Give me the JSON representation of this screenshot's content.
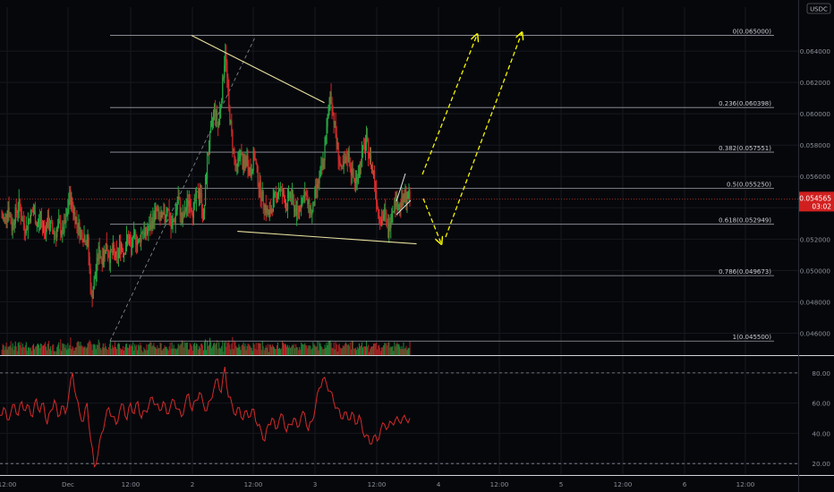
{
  "chart_data": [
    {
      "type": "candlestick",
      "pair_badge": "USDC",
      "x_tick_labels": [
        "12:00",
        "Dec",
        "12:00",
        "2",
        "12:00",
        "3",
        "12:00",
        "4",
        "12:00",
        "5",
        "12:00",
        "6",
        "12:00"
      ],
      "y_tick_labels": [
        0.064,
        0.062,
        0.06,
        0.058,
        0.056,
        0.054,
        0.052,
        0.05,
        0.048,
        0.046
      ],
      "ylim": [
        0.0446,
        0.0668
      ],
      "last_price": "0.054565",
      "countdown": "03:02",
      "fibonacci_levels": [
        {
          "ratio": "0",
          "price": 0.065,
          "label": "0(0.065000)"
        },
        {
          "ratio": "0.236",
          "price": 0.060398,
          "label": "0.236(0.060398)"
        },
        {
          "ratio": "0.382",
          "price": 0.057551,
          "label": "0.382(0.057551)"
        },
        {
          "ratio": "0.5",
          "price": 0.05525,
          "label": "0.5(0.055250)"
        },
        {
          "ratio": "0.618",
          "price": 0.052949,
          "label": "0.618(0.052949)"
        },
        {
          "ratio": "0.786",
          "price": 0.049673,
          "label": "0.786(0.049673)"
        },
        {
          "ratio": "1",
          "price": 0.0455,
          "label": "1(0.045500)"
        }
      ],
      "price_series": [
        0.0535,
        0.0532,
        0.0541,
        0.0528,
        0.0536,
        0.0542,
        0.0531,
        0.0527,
        0.0535,
        0.0538,
        0.0529,
        0.0533,
        0.0526,
        0.0531,
        0.0527,
        0.0523,
        0.0529,
        0.0524,
        0.0532,
        0.0548,
        0.0538,
        0.0531,
        0.0524,
        0.0522,
        0.0518,
        0.0482,
        0.0496,
        0.0512,
        0.0508,
        0.0516,
        0.0509,
        0.0512,
        0.0507,
        0.0517,
        0.0512,
        0.0521,
        0.0514,
        0.0522,
        0.0517,
        0.0526,
        0.0523,
        0.0527,
        0.0533,
        0.0538,
        0.0532,
        0.0534,
        0.0541,
        0.0527,
        0.0533,
        0.0546,
        0.0531,
        0.0539,
        0.0545,
        0.0538,
        0.0546,
        0.0551,
        0.0533,
        0.0571,
        0.0588,
        0.0604,
        0.0592,
        0.0612,
        0.0641,
        0.0603,
        0.0581,
        0.0562,
        0.0576,
        0.0566,
        0.0571,
        0.0562,
        0.0574,
        0.0558,
        0.0548,
        0.0541,
        0.0534,
        0.0542,
        0.0548,
        0.0553,
        0.0547,
        0.0542,
        0.0549,
        0.0541,
        0.0536,
        0.0545,
        0.0549,
        0.0541,
        0.0536,
        0.0551,
        0.0558,
        0.0568,
        0.0589,
        0.0614,
        0.0596,
        0.0578,
        0.0562,
        0.0568,
        0.0574,
        0.0561,
        0.0556,
        0.0565,
        0.0576,
        0.0582,
        0.0571,
        0.0562,
        0.0542,
        0.0531,
        0.0537,
        0.0524,
        0.0539,
        0.0545,
        0.0541,
        0.0544,
        0.0547,
        0.0546
      ],
      "trend_lines": [
        {
          "from": [
            "2 12:00",
            0.065
          ],
          "to": [
            "3 12:00",
            0.0607
          ]
        },
        {
          "from": [
            "3 00:00",
            0.0525
          ],
          "to": [
            "4 12:00",
            0.0517
          ]
        }
      ],
      "arrows": [
        "up",
        "down",
        "up"
      ]
    },
    {
      "type": "line",
      "name": "oscillator",
      "y_tick_labels": [
        80.0,
        60.0,
        40.0,
        20.0
      ],
      "ylim": [
        13,
        90
      ],
      "reference_levels": [
        80,
        20
      ],
      "values": [
        52,
        57,
        49,
        54,
        59,
        52,
        61,
        55,
        58,
        51,
        63,
        54,
        60,
        46,
        55,
        62,
        51,
        58,
        53,
        66,
        80,
        64,
        53,
        48,
        60,
        36,
        18,
        26,
        40,
        49,
        57,
        51,
        46,
        55,
        59,
        49,
        60,
        53,
        61,
        50,
        55,
        58,
        64,
        59,
        55,
        61,
        53,
        58,
        62,
        56,
        51,
        59,
        66,
        55,
        62,
        67,
        60,
        55,
        62,
        70,
        76,
        67,
        84,
        64,
        59,
        52,
        57,
        49,
        55,
        51,
        56,
        45,
        42,
        35,
        46,
        50,
        43,
        49,
        52,
        41,
        46,
        50,
        44,
        51,
        53,
        42,
        48,
        58,
        70,
        76,
        73,
        68,
        61,
        57,
        50,
        54,
        49,
        54,
        46,
        52,
        41,
        39,
        33,
        38,
        35,
        43,
        46,
        44,
        47,
        49,
        48,
        50,
        49,
        50
      ]
    }
  ]
}
